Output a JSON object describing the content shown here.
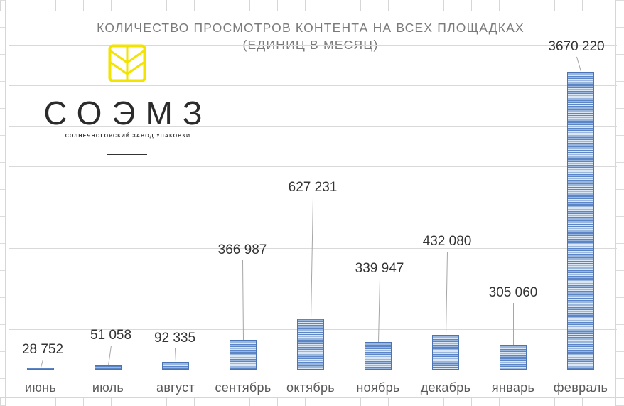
{
  "chart_data": {
    "type": "bar",
    "title": "КОЛИЧЕСТВО ПРОСМОТРОВ КОНТЕНТА НА ВСЕХ ПЛОЩАДКАХ (ЕДИНИЦ В МЕСЯЦ)",
    "categories": [
      "июнь",
      "июль",
      "август",
      "сентябрь",
      "октябрь",
      "ноябрь",
      "декабрь",
      "январь",
      "февраль"
    ],
    "values": [
      28752,
      51058,
      92335,
      366987,
      627231,
      339947,
      432080,
      305060,
      3670220
    ],
    "value_labels": [
      "28 752",
      "51 058",
      "92 335",
      "366 987",
      "627 231",
      "339 947",
      "432 080",
      "305 060",
      "3670 220"
    ],
    "xlabel": "",
    "ylabel": "",
    "ylim": [
      0,
      4000000
    ],
    "y_gridline_step": 500000,
    "y_axis_labels_visible": false,
    "grid": true,
    "legend": "none",
    "bar_color": "#5b85c4",
    "bar_pattern": "horizontal-stripes"
  },
  "title": {
    "line1": "КОЛИЧЕСТВО ПРОСМОТРОВ КОНТЕНТА НА ВСЕХ ПЛОЩАДКАХ",
    "line2": "(ЕДИНИЦ В МЕСЯЦ)"
  },
  "logo": {
    "wordmark": "СОЭМЗ",
    "subtitle": "СОЛНЕЧНОГОРСКИЙ ЗАВОД УПАКОВКИ",
    "mark_color": "#f2e300",
    "icon": "wheat-leaf-icon"
  }
}
